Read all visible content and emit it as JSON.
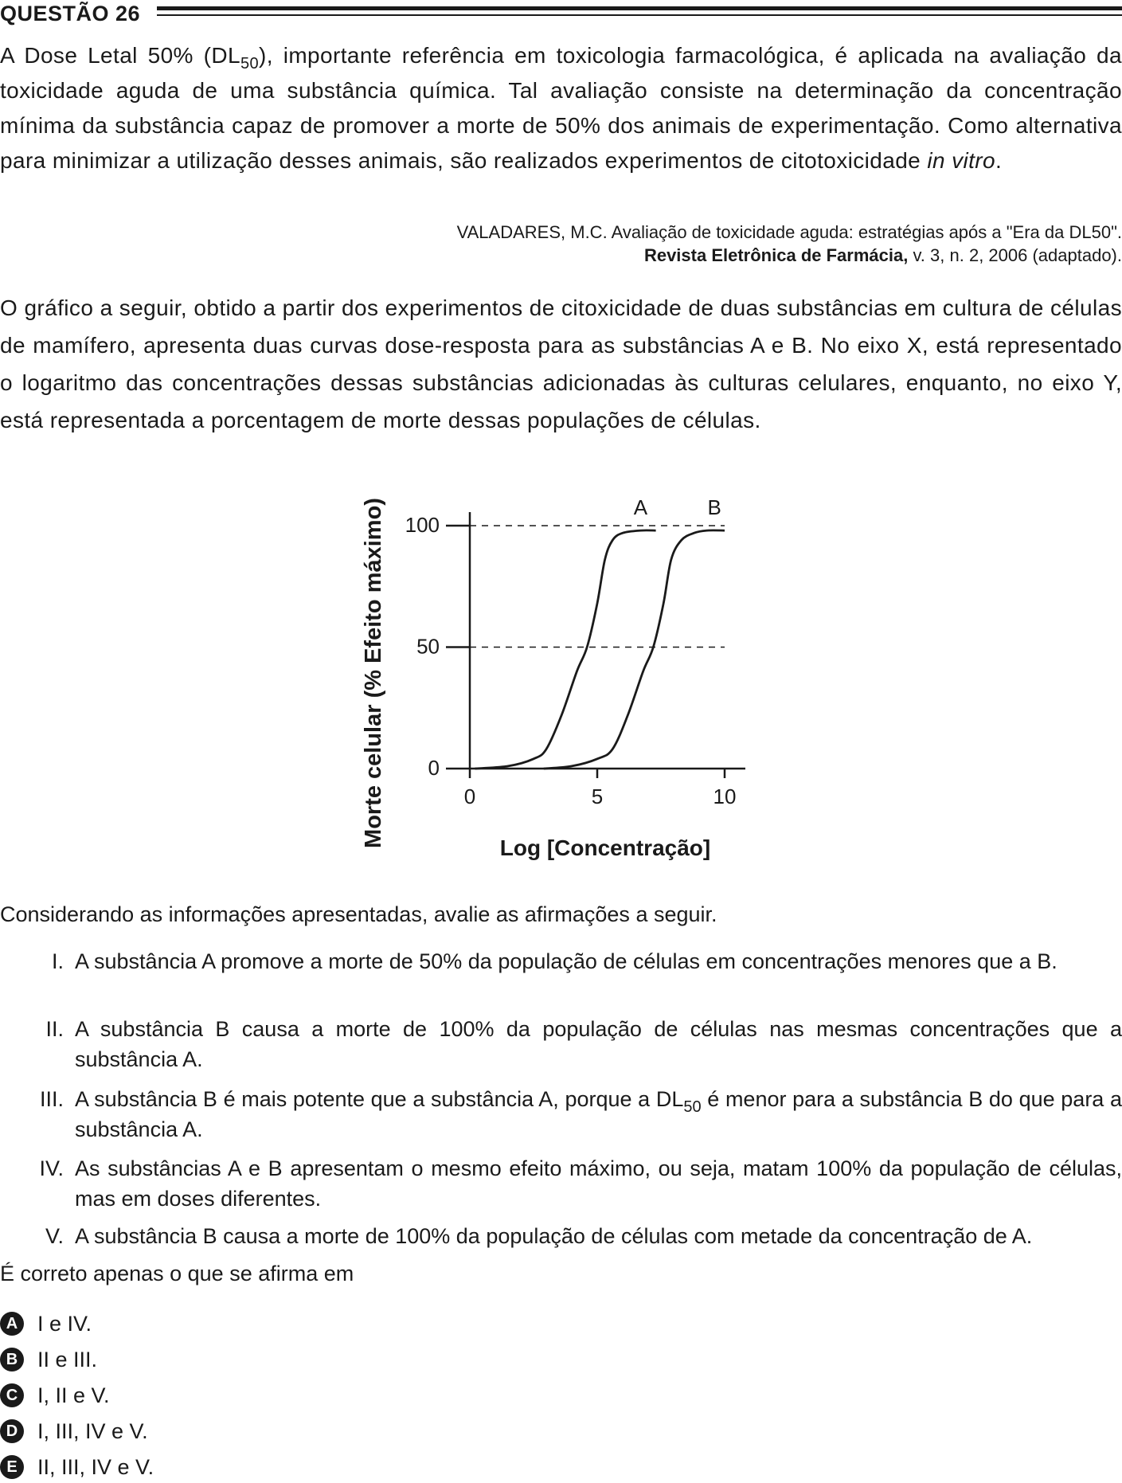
{
  "question": {
    "title": "QUESTÃO 26"
  },
  "intro": {
    "t1": "A Dose Letal 50% (DL",
    "sub1": "50",
    "t2": "), importante referência em toxicologia farmacológica, é aplicada na avaliação da toxicidade aguda de uma substância química. Tal avaliação consiste na determinação da concentração mínima da substância capaz de promover a morte de 50% dos animais de experimentação. Como alternativa para minimizar a utilização desses animais, são realizados experimentos de citotoxicidade ",
    "italic": "in vitro",
    "t3": "."
  },
  "citation": {
    "line1": "VALADARES, M.C. Avaliação de toxicidade aguda: estratégias após a \"Era da DL50\".",
    "journal": "Revista Eletrônica de Farmácia,",
    "rest": " v. 3, n. 2, 2006 (adaptado)."
  },
  "description": "O gráfico a seguir, obtido a partir dos experimentos de citoxicidade de duas substâncias em cultura de células de mamífero, apresenta duas curvas dose-resposta para as substâncias A e B. No eixo X, está representado o logaritmo das concentrações dessas substâncias adicionadas às culturas celulares, enquanto, no eixo Y, está representada a porcentagem de morte dessas populações de células.",
  "chart_data": {
    "type": "line",
    "xlabel": "Log [Concentração]",
    "ylabel": "Morte celular (% Efeito máximo)",
    "xlim": [
      0,
      10
    ],
    "ylim": [
      0,
      100
    ],
    "x_ticks": [
      "0",
      "5",
      "10"
    ],
    "y_ticks": [
      "0",
      "50",
      "100"
    ],
    "reference_lines": [
      50,
      100
    ],
    "series": [
      {
        "name": "A",
        "x": [
          0.2,
          1.5,
          2.5,
          3.0,
          3.6,
          4.2,
          4.6,
          5.0,
          5.3,
          5.6,
          6.0,
          6.7,
          7.3
        ],
        "y": [
          0,
          1,
          4,
          8,
          22,
          40,
          50,
          68,
          86,
          94,
          97,
          98,
          98
        ]
      },
      {
        "name": "B",
        "x": [
          2.9,
          4.0,
          5.0,
          5.6,
          6.2,
          6.8,
          7.2,
          7.6,
          7.9,
          8.3,
          8.8,
          9.3,
          10.0
        ],
        "y": [
          0,
          1,
          4,
          8,
          22,
          40,
          50,
          68,
          86,
          94,
          97,
          98,
          98
        ]
      }
    ]
  },
  "prompt": "Considerando as informações apresentadas, avalie as afirmações a seguir.",
  "statements": [
    {
      "num": "I.",
      "text": "A substância A promove a morte de 50% da população de células em concentrações menores que a B."
    },
    {
      "num": "II.",
      "text": "A substância B causa a morte de 100% da população de células nas mesmas concentrações que a substância A."
    },
    {
      "num": "III.",
      "t1": "A substância B é mais potente que a substância A, porque a DL",
      "sub": "50",
      "t2": " é menor para a substância B do que para a substância A."
    },
    {
      "num": "IV.",
      "text": "As substâncias A e B apresentam o mesmo efeito máximo, ou seja, matam 100% da população de células, mas em doses diferentes."
    },
    {
      "num": "V.",
      "text": "A substância B causa a morte de 100% da população de células com metade da concentração de A."
    }
  ],
  "ask": "É correto apenas o que se afirma em",
  "options": [
    {
      "letter": "A",
      "text": "I e IV."
    },
    {
      "letter": "B",
      "text": "II e III."
    },
    {
      "letter": "C",
      "text": "I, II e V."
    },
    {
      "letter": "D",
      "text": "I, III, IV e V."
    },
    {
      "letter": "E",
      "text": "II, III, IV e V."
    }
  ]
}
